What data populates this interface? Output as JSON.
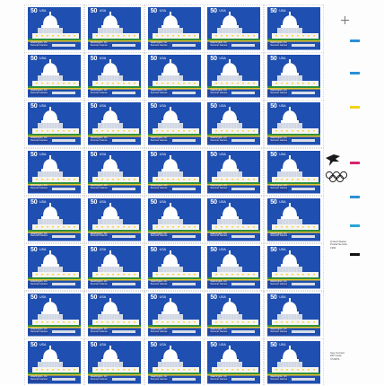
{
  "stamp": {
    "denomination": "50",
    "country": "USA",
    "caption": "Washington, DC\nSummer Games",
    "colors": {
      "sky": "#1f4fb0",
      "dome": "#ffffff",
      "trees": "#2f8f3a",
      "flowers": "#e8c22a",
      "banner": "#22449c"
    }
  },
  "sheet": {
    "columns": 5,
    "rows": 8,
    "stamp_count": 40
  },
  "margin": {
    "color_marks": [
      {
        "name": "blue-mark",
        "color": "#2a8fd8"
      },
      {
        "name": "blue-mark",
        "color": "#2a8fd8"
      },
      {
        "name": "yellow-mark",
        "color": "#f2d21a"
      },
      {
        "name": "magenta-mark",
        "color": "#d6246e"
      },
      {
        "name": "blue-mark",
        "color": "#2a8fd8"
      },
      {
        "name": "cyan-mark",
        "color": "#27a6d6"
      },
      {
        "name": "black-mark",
        "color": "#111111"
      }
    ],
    "printer_text": "United States\nPostal Service\n1991",
    "copyright_text": "Use Correct\nZIP Code\n©USPS",
    "icons": [
      "eagle-logo-icon",
      "olympic-rings-icon",
      "registration-crosshair-icon"
    ]
  }
}
